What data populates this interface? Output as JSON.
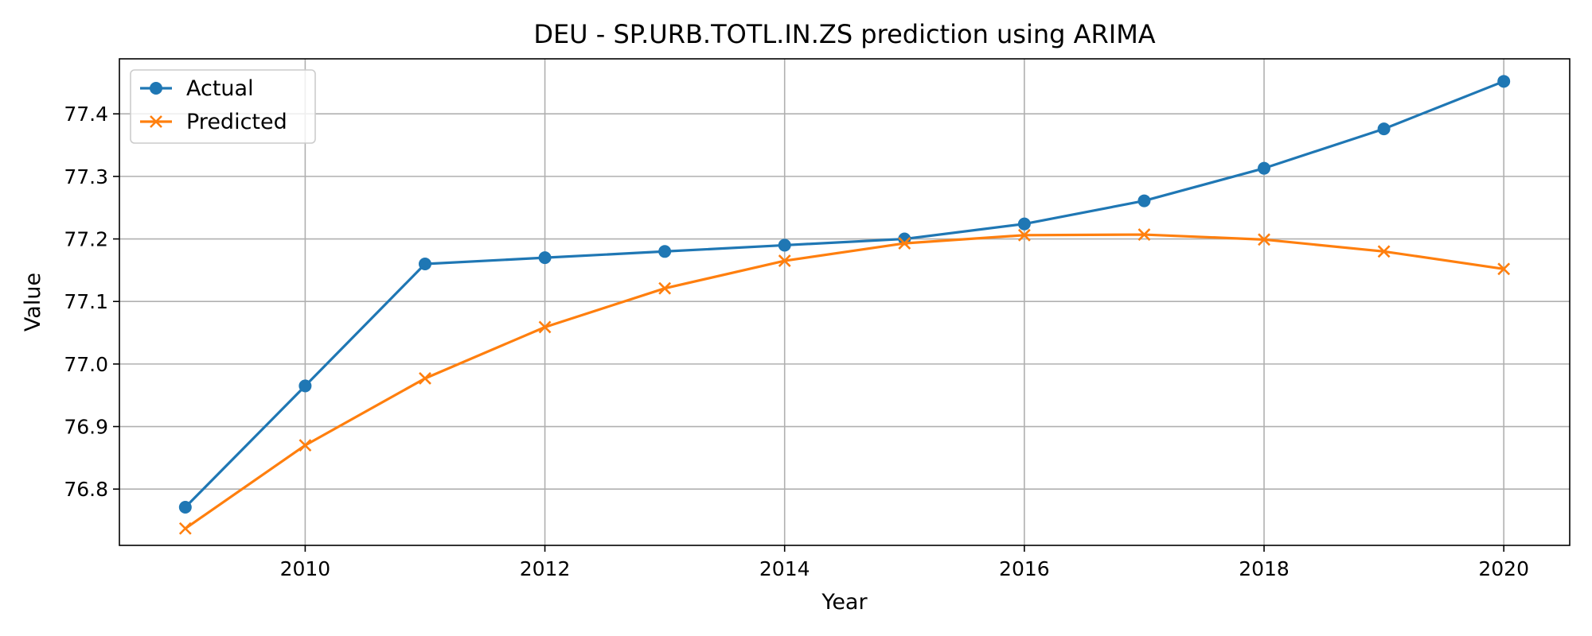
{
  "chart_data": {
    "type": "line",
    "title": "DEU - SP.URB.TOTL.IN.ZS prediction using ARIMA",
    "xlabel": "Year",
    "ylabel": "Value",
    "x": [
      2009,
      2010,
      2011,
      2012,
      2013,
      2014,
      2015,
      2016,
      2017,
      2018,
      2019,
      2020
    ],
    "xlim": [
      2008.45,
      2020.55
    ],
    "ylim": [
      76.71,
      77.488
    ],
    "x_ticks": [
      "2010",
      "2012",
      "2014",
      "2016",
      "2018",
      "2020"
    ],
    "y_ticks": [
      "76.8",
      "76.9",
      "77.0",
      "77.1",
      "77.2",
      "77.3",
      "77.4"
    ],
    "grid": true,
    "legend_position": "top-left",
    "series": [
      {
        "name": "Actual",
        "color": "#1f77b4",
        "marker": "circle",
        "values": [
          76.771,
          76.965,
          77.16,
          77.17,
          77.18,
          77.19,
          77.2,
          77.224,
          77.261,
          77.313,
          77.376,
          77.452
        ]
      },
      {
        "name": "Predicted",
        "color": "#ff7f0e",
        "marker": "x",
        "values": [
          76.737,
          76.87,
          76.977,
          77.059,
          77.121,
          77.165,
          77.193,
          77.206,
          77.207,
          77.199,
          77.18,
          77.152
        ]
      }
    ]
  }
}
